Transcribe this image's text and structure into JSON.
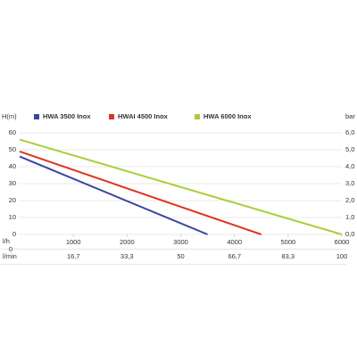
{
  "chart_data": {
    "type": "line",
    "y_label": "H(m)",
    "y2_label": "bar",
    "x_label": "l/h",
    "x2_label": "l/min",
    "xlim": [
      0,
      6000
    ],
    "xticks": [
      0,
      1000,
      2000,
      3000,
      4000,
      5000,
      6000
    ],
    "x2lim": [
      0,
      100
    ],
    "x2ticks": [
      {
        "value": 16.7,
        "label": "16,7"
      },
      {
        "value": 33.3,
        "label": "33,3"
      },
      50,
      {
        "value": 66.7,
        "label": "66,7"
      },
      {
        "value": 83.3,
        "label": "83,3"
      },
      100
    ],
    "ylim": [
      0,
      60
    ],
    "yticks": [
      0,
      10,
      20,
      30,
      40,
      50,
      60
    ],
    "y2lim": [
      0,
      6
    ],
    "y2ticks": [
      {
        "value": 0,
        "label": "0,0"
      },
      {
        "value": 1,
        "label": "1,0"
      },
      {
        "value": 2,
        "label": "2,0"
      },
      {
        "value": 3,
        "label": "3,0"
      },
      {
        "value": 4,
        "label": "4,0"
      },
      {
        "value": 5,
        "label": "5,0"
      },
      {
        "value": 6,
        "label": "6,0"
      }
    ],
    "grid": true,
    "series": [
      {
        "name": "HWA 3500 Inox",
        "color": "#3a46a0",
        "x": [
          0,
          3500
        ],
        "values": [
          46,
          0
        ]
      },
      {
        "name": "HWAI 4500 Inox",
        "color": "#e0331f",
        "x": [
          0,
          4500
        ],
        "values": [
          49,
          0
        ]
      },
      {
        "name": "HWA 6000 Inox",
        "color": "#a8cf3a",
        "x": [
          0,
          6000
        ],
        "values": [
          56,
          0
        ]
      }
    ]
  }
}
